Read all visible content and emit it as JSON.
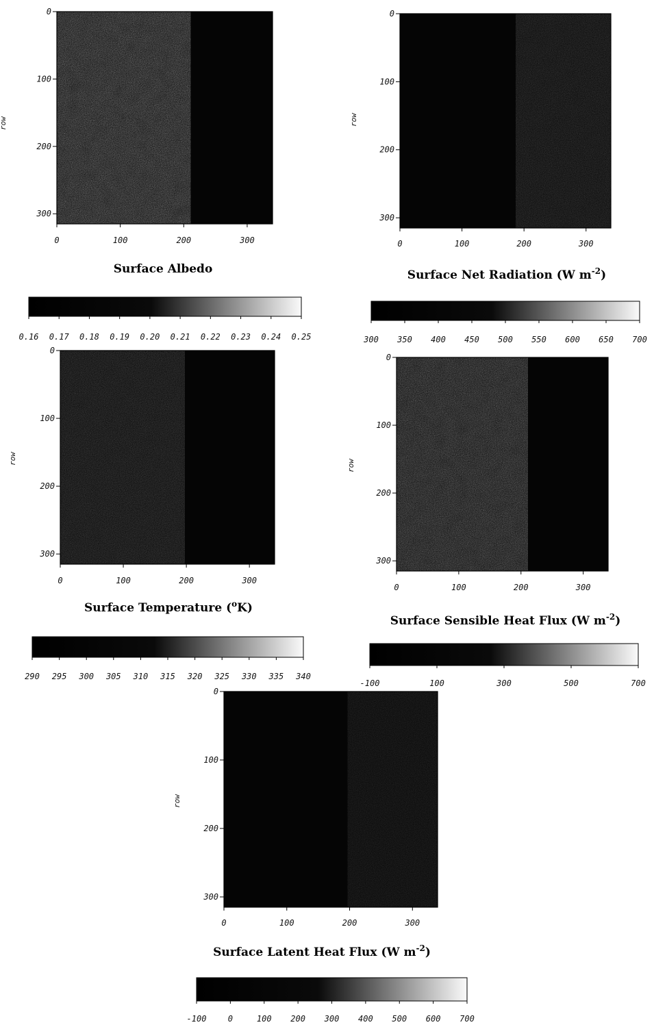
{
  "chart_data": [
    {
      "type": "heatmap",
      "title": "Surface Albedo",
      "ylabel": "row",
      "xlabel": "",
      "x_ticks": [
        "0",
        "100",
        "200",
        "300"
      ],
      "y_ticks": [
        "0",
        "100",
        "200",
        "300"
      ],
      "colorbar_ticks": [
        "0.16",
        "0.17",
        "0.18",
        "0.19",
        "0.20",
        "0.21",
        "0.22",
        "0.23",
        "0.24",
        "0.25"
      ],
      "colorbar_range": [
        0.16,
        0.25
      ],
      "colormap": "grayscale"
    },
    {
      "type": "heatmap",
      "title": "Surface Net Radiation (W m",
      "title_sup": "-2",
      "title_end": ")",
      "ylabel": "row",
      "xlabel": "",
      "x_ticks": [
        "0",
        "100",
        "200",
        "300"
      ],
      "y_ticks": [
        "0",
        "100",
        "200",
        "300"
      ],
      "colorbar_ticks": [
        "300",
        "350",
        "400",
        "450",
        "500",
        "550",
        "600",
        "650",
        "700"
      ],
      "colorbar_range": [
        300,
        700
      ],
      "colormap": "grayscale"
    },
    {
      "type": "heatmap",
      "title": "Surface Temperature (",
      "title_sup": "o",
      "title_end": "K)",
      "ylabel": "row",
      "xlabel": "",
      "x_ticks": [
        "0",
        "100",
        "200",
        "300"
      ],
      "y_ticks": [
        "0",
        "100",
        "200",
        "300"
      ],
      "colorbar_ticks": [
        "290",
        "295",
        "300",
        "305",
        "310",
        "315",
        "320",
        "325",
        "330",
        "335",
        "340"
      ],
      "colorbar_range": [
        290,
        340
      ],
      "colormap": "grayscale"
    },
    {
      "type": "heatmap",
      "title": "Surface Sensible Heat Flux (W m",
      "title_sup": "-2",
      "title_end": ")",
      "ylabel": "row",
      "xlabel": "",
      "x_ticks": [
        "0",
        "100",
        "200",
        "300"
      ],
      "y_ticks": [
        "0",
        "100",
        "200",
        "300"
      ],
      "colorbar_ticks": [
        "-100",
        "100",
        "300",
        "500",
        "700"
      ],
      "colorbar_range": [
        -100,
        700
      ],
      "colormap": "grayscale"
    },
    {
      "type": "heatmap",
      "title": "Surface Latent Heat Flux (W m",
      "title_sup": "-2",
      "title_end": ")",
      "ylabel": "row",
      "xlabel": "",
      "x_ticks": [
        "0",
        "100",
        "200",
        "300"
      ],
      "y_ticks": [
        "0",
        "100",
        "200",
        "300"
      ],
      "colorbar_ticks": [
        "-100",
        "0",
        "100",
        "200",
        "300",
        "400",
        "500",
        "600",
        "700"
      ],
      "colorbar_range": [
        -100,
        700
      ],
      "colormap": "grayscale"
    }
  ]
}
